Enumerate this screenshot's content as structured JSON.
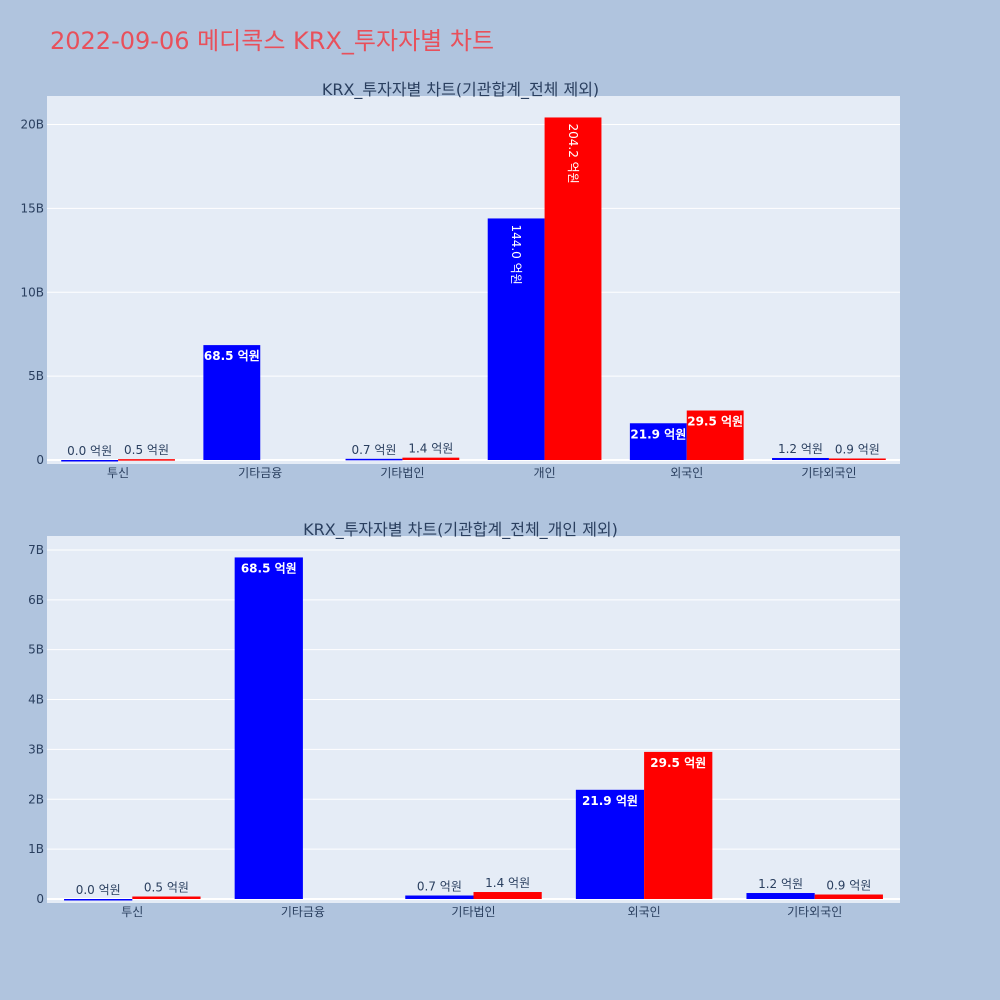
{
  "title": "2022-09-06 메디콕스 KRX_투자자별 차트",
  "colors": {
    "background": "#b0c4de",
    "plot_background": "#e5ecf6",
    "grid": "#ffffff",
    "title": "#e8505b",
    "text": "#2a3f5f",
    "series_blue": "#0000ff",
    "series_red": "#ff0000"
  },
  "chart_data": [
    {
      "type": "bar",
      "title": "KRX_투자자별 차트(기관합계_전체 제외)",
      "categories": [
        "투신",
        "기타금융",
        "기타법인",
        "개인",
        "외국인",
        "기타외국인"
      ],
      "series": [
        {
          "color": "#0000ff",
          "values": [
            0.0,
            6850000000,
            70000000,
            14400000000,
            2190000000,
            120000000
          ],
          "labels": [
            "0.0 억원",
            "68.5 억원",
            "0.7 억원",
            "144.0 억원",
            "21.9 억원",
            "1.2 억원"
          ]
        },
        {
          "color": "#ff0000",
          "values": [
            50000000,
            null,
            140000000,
            20420000000,
            2950000000,
            90000000
          ],
          "labels": [
            "0.5 억원",
            "",
            "1.4 억원",
            "204.2 억원",
            "29.5 억원",
            "0.9 억원"
          ]
        }
      ],
      "ylim": [
        0,
        21700000000
      ],
      "yticks": [
        0,
        5000000000,
        10000000000,
        15000000000,
        20000000000
      ],
      "ytick_labels": [
        "0",
        "5B",
        "10B",
        "15B",
        "20B"
      ],
      "grid": true
    },
    {
      "type": "bar",
      "title": "KRX_투자자별 차트(기관합계_전체_개인 제외)",
      "categories": [
        "투신",
        "기타금융",
        "기타법인",
        "외국인",
        "기타외국인"
      ],
      "series": [
        {
          "color": "#0000ff",
          "values": [
            0.0,
            6850000000,
            70000000,
            2190000000,
            120000000
          ],
          "labels": [
            "0.0 억원",
            "68.5 억원",
            "0.7 억원",
            "21.9 억원",
            "1.2 억원"
          ]
        },
        {
          "color": "#ff0000",
          "values": [
            50000000,
            null,
            140000000,
            2950000000,
            90000000
          ],
          "labels": [
            "0.5 억원",
            "",
            "1.4 억원",
            "29.5 억원",
            "0.9 억원"
          ]
        }
      ],
      "ylim": [
        0,
        7280000000
      ],
      "yticks": [
        0,
        1000000000,
        2000000000,
        3000000000,
        4000000000,
        5000000000,
        6000000000,
        7000000000
      ],
      "ytick_labels": [
        "0",
        "1B",
        "2B",
        "3B",
        "4B",
        "5B",
        "6B",
        "7B"
      ],
      "grid": true
    }
  ]
}
